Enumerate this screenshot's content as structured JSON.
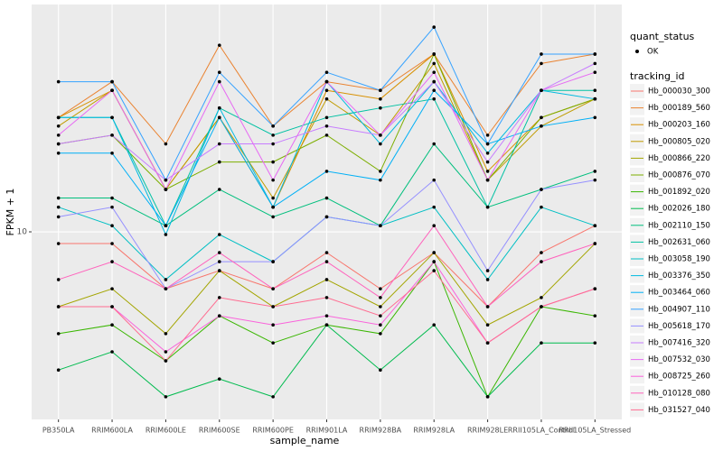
{
  "chart_data": {
    "type": "line",
    "x_label": "sample_name",
    "y_label": "FPKM + 1",
    "log_scale": true,
    "grid": true,
    "ylim": [
      3.03,
      42.5
    ],
    "yticks": [
      10
    ],
    "point_color": "#000000",
    "point_legend_title": "quant_status",
    "point_legend_label": "OK",
    "legend_title": "tracking_id",
    "legend_position": "right",
    "categories": [
      "PB350LA",
      "RRIM600LA",
      "RRIM600LE",
      "RRIM600SE",
      "RRIM600PE",
      "RRIM901LA",
      "RRIM928BA",
      "RRIM928LA",
      "RRIM928LE",
      "RRII105LA_Control",
      "RRII105LA_Stressed"
    ],
    "series": [
      {
        "name": "Hb_000030_300",
        "color": "#F8766D",
        "values": [
          9.28,
          9.28,
          6.96,
          7.81,
          6.96,
          8.76,
          6.96,
          8.76,
          6.21,
          8.76,
          10.4
        ]
      },
      {
        "name": "Hb_000189_560",
        "color": "#EA8331",
        "values": [
          20.7,
          26,
          17.5,
          32.8,
          19.6,
          26,
          24.6,
          31,
          18.5,
          29.2,
          31
        ]
      },
      {
        "name": "Hb_000203_160",
        "color": "#D89000",
        "values": [
          20.7,
          24.6,
          13.1,
          20.7,
          11.7,
          24.6,
          23.3,
          31,
          14.7,
          20.7,
          23.3
        ]
      },
      {
        "name": "Hb_000805_020",
        "color": "#C09B00",
        "values": [
          19.6,
          24.6,
          13.1,
          20.7,
          12.4,
          23.3,
          18.5,
          29.2,
          13.9,
          19.6,
          23.3
        ]
      },
      {
        "name": "Hb_000866_220",
        "color": "#A3A500",
        "values": [
          6.21,
          6.96,
          5.23,
          7.81,
          6.21,
          7.38,
          6.21,
          8.76,
          5.53,
          6.58,
          9.28
        ]
      },
      {
        "name": "Hb_000876_070",
        "color": "#7CAE00",
        "values": [
          17.5,
          18.5,
          13.1,
          15.6,
          15.6,
          18.5,
          14.7,
          31,
          13.9,
          20.7,
          23.3
        ]
      },
      {
        "name": "Hb_001892_020",
        "color": "#39B600",
        "values": [
          5.23,
          5.53,
          4.4,
          5.86,
          4.93,
          5.53,
          5.23,
          8.27,
          3.5,
          6.21,
          5.86
        ]
      },
      {
        "name": "Hb_002026_180",
        "color": "#00BB4E",
        "values": [
          4.15,
          4.66,
          3.5,
          3.92,
          3.5,
          5.53,
          4.15,
          5.53,
          3.5,
          4.93,
          4.93
        ]
      },
      {
        "name": "Hb_002110_150",
        "color": "#00BF7D",
        "values": [
          12.4,
          12.4,
          10.4,
          13.1,
          11,
          12.4,
          10.4,
          17.5,
          11.7,
          13.1,
          14.7
        ]
      },
      {
        "name": "Hb_002631_060",
        "color": "#00C1A3",
        "values": [
          20.7,
          20.7,
          10.4,
          22,
          18.5,
          20.7,
          22,
          23.3,
          11.7,
          24.6,
          24.6
        ]
      },
      {
        "name": "Hb_003058_190",
        "color": "#00BFC4",
        "values": [
          11.7,
          10.4,
          7.38,
          9.83,
          8.27,
          11,
          10.4,
          11.7,
          7.38,
          11.7,
          10.4
        ]
      },
      {
        "name": "Hb_003376_350",
        "color": "#00BAE0",
        "values": [
          20.7,
          20.7,
          9.83,
          22,
          11.7,
          26,
          17.5,
          26,
          16.5,
          24.6,
          23.3
        ]
      },
      {
        "name": "Hb_003464_060",
        "color": "#00B0F6",
        "values": [
          16.5,
          16.5,
          10.4,
          20.7,
          11.7,
          14.7,
          13.9,
          24.6,
          17.5,
          19.6,
          20.7
        ]
      },
      {
        "name": "Hb_004907_110",
        "color": "#35A2FF",
        "values": [
          26,
          26,
          13.9,
          27.6,
          19.6,
          27.6,
          24.6,
          36.8,
          17.5,
          31,
          31
        ]
      },
      {
        "name": "Hb_005618_170",
        "color": "#9590FF",
        "values": [
          11,
          11.7,
          6.96,
          8.27,
          8.27,
          11,
          10.4,
          13.9,
          7.81,
          13.1,
          13.9
        ]
      },
      {
        "name": "Hb_007416_320",
        "color": "#C77CFF",
        "values": [
          17.5,
          18.5,
          13.9,
          17.5,
          17.5,
          19.6,
          18.5,
          26,
          15.6,
          24.6,
          29.2
        ]
      },
      {
        "name": "Hb_007532_030",
        "color": "#E76BF3",
        "values": [
          18.5,
          24.6,
          13.1,
          26,
          13.9,
          26,
          18.5,
          27.6,
          13.9,
          24.6,
          27.6
        ]
      },
      {
        "name": "Hb_008725_260",
        "color": "#FA62DB",
        "values": [
          6.21,
          6.21,
          4.66,
          5.86,
          5.53,
          5.86,
          5.53,
          8.27,
          4.93,
          6.21,
          6.96
        ]
      },
      {
        "name": "Hb_010128_080",
        "color": "#FF62BC",
        "values": [
          7.38,
          8.27,
          6.96,
          8.76,
          6.96,
          8.27,
          6.58,
          10.4,
          6.21,
          8.27,
          9.28
        ]
      },
      {
        "name": "Hb_031527_040",
        "color": "#FF6C91",
        "values": [
          6.21,
          6.21,
          4.4,
          6.58,
          6.21,
          6.58,
          5.86,
          7.81,
          4.93,
          6.21,
          6.96
        ]
      }
    ]
  }
}
